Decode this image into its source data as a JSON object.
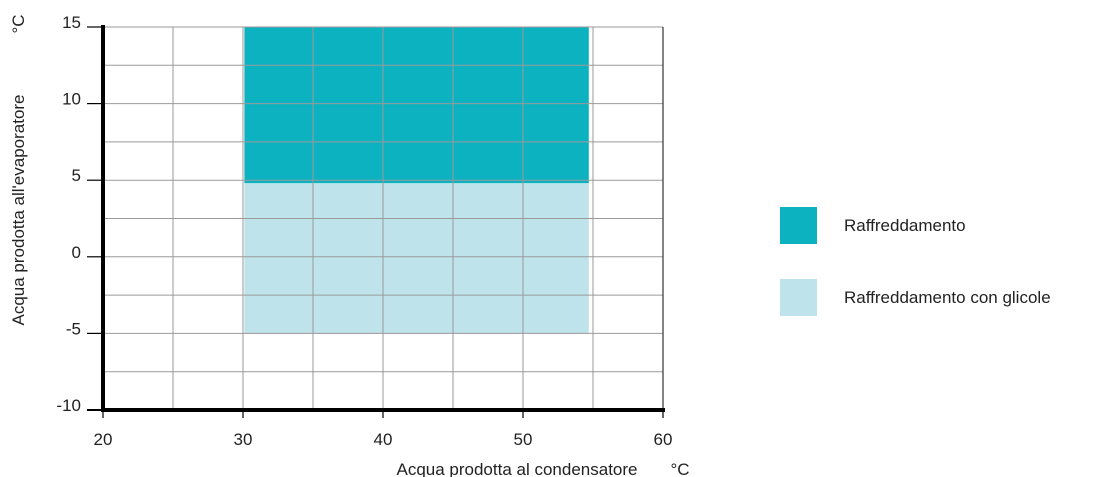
{
  "chart_data": {
    "type": "area",
    "title": "",
    "xlabel": "Acqua prodotta al condensatore",
    "xlabel_unit": "°C",
    "ylabel": "Acqua prodotta all'evaporatore",
    "ylabel_unit": "°C",
    "xlim": [
      20,
      60
    ],
    "ylim": [
      -10,
      15
    ],
    "x_ticks": [
      20,
      30,
      40,
      50,
      60
    ],
    "y_ticks": [
      -10,
      -5,
      0,
      5,
      10,
      15
    ],
    "x_gridlines": [
      20,
      25,
      30,
      35,
      40,
      45,
      50,
      55,
      60
    ],
    "y_gridlines": [
      -10,
      -7.5,
      -5,
      -2.5,
      0,
      2.5,
      5,
      7.5,
      10,
      12.5,
      15
    ],
    "grid": true,
    "legend_position": "right",
    "series": [
      {
        "name": "Raffreddamento",
        "color": "#0db2c1",
        "x_range": [
          30.1,
          54.7
        ],
        "y_range": [
          4.8,
          15
        ]
      },
      {
        "name": "Raffreddamento con glicole",
        "color": "#bfe3ea",
        "x_range": [
          30.1,
          54.7
        ],
        "y_range": [
          -5,
          4.8
        ]
      }
    ]
  }
}
